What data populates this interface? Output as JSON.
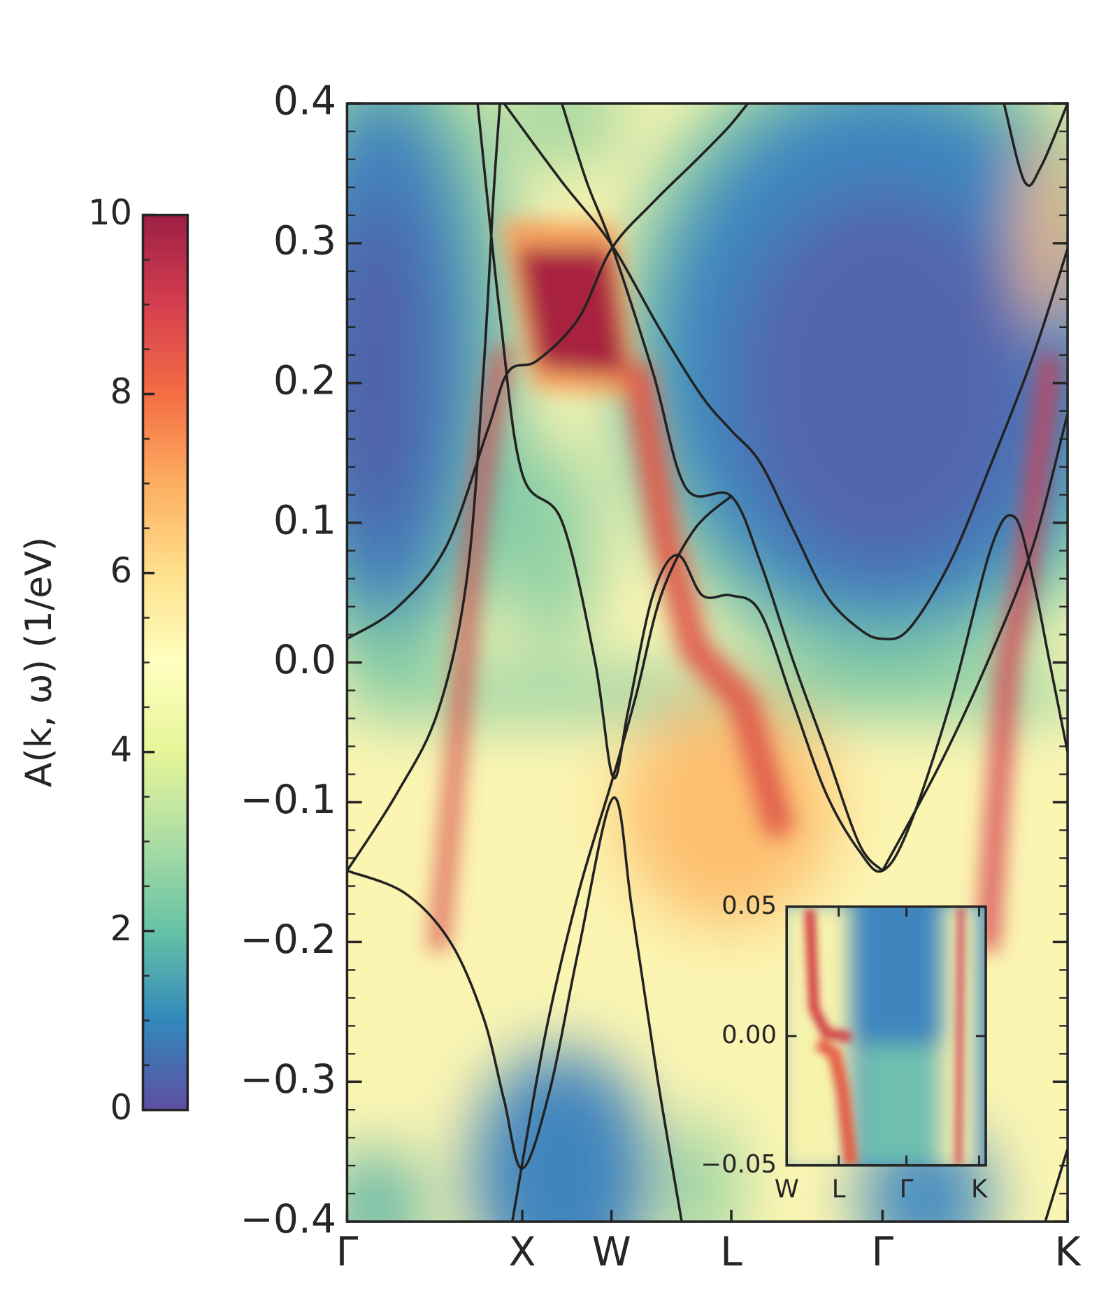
{
  "chart_data": {
    "type": "line",
    "line_color": "#222222",
    "xlim": [
      0,
      872
    ],
    "xticks": [
      {
        "value": 0,
        "label": "Γ"
      },
      {
        "value": 212,
        "label": "X"
      },
      {
        "value": 320,
        "label": "W"
      },
      {
        "value": 465,
        "label": "L"
      },
      {
        "value": 648,
        "label": "Γ"
      },
      {
        "value": 872,
        "label": "K"
      }
    ],
    "ylim": [
      -0.4,
      0.4
    ],
    "yticks": [
      {
        "value": -0.4,
        "label": "−0.4"
      },
      {
        "value": -0.3,
        "label": "−0.3"
      },
      {
        "value": -0.2,
        "label": "−0.2"
      },
      {
        "value": -0.1,
        "label": "−0.1"
      },
      {
        "value": 0,
        "label": "0.0"
      },
      0.1,
      0.2,
      0.3,
      0.4
    ],
    "yminorticks": [
      -0.38,
      -0.36,
      -0.34,
      -0.32,
      -0.28,
      -0.26,
      -0.24,
      -0.22,
      -0.18,
      -0.16,
      -0.14,
      -0.12,
      -0.08,
      -0.06,
      -0.04,
      -0.02,
      0.02,
      0.04,
      0.06,
      0.08,
      0.12,
      0.14,
      0.16,
      0.18,
      0.22,
      0.24,
      0.26,
      0.28,
      0.32,
      0.34,
      0.36,
      0.38
    ],
    "series": [
      {
        "x": [
          0,
          60,
          120,
          170,
          195,
          230,
          280,
          320,
          370,
          420,
          460,
          485
        ],
        "values": [
          0.017,
          0.039,
          0.083,
          0.166,
          0.208,
          0.216,
          0.246,
          0.296,
          0.329,
          0.358,
          0.382,
          0.4
        ]
      },
      {
        "x": [
          260,
          290,
          320,
          370,
          410,
          465,
          500,
          540,
          580,
          620,
          648
        ],
        "values": [
          0.4,
          0.344,
          0.299,
          0.208,
          0.125,
          0.119,
          0.072,
          0.001,
          -0.064,
          -0.13,
          -0.149
        ]
      },
      {
        "x": [
          190,
          260,
          320,
          380,
          430,
          465,
          500,
          540,
          580,
          620,
          648,
          680,
          730,
          780,
          830,
          872
        ],
        "values": [
          0.4,
          0.344,
          0.299,
          0.237,
          0.19,
          0.166,
          0.143,
          0.095,
          0.048,
          0.024,
          0.017,
          0.024,
          0.072,
          0.143,
          0.219,
          0.296
        ]
      },
      {
        "x": [
          0,
          60,
          110,
          145,
          165,
          177,
          185
        ],
        "values": [
          -0.149,
          -0.094,
          -0.035,
          0.06,
          0.208,
          0.332,
          0.4
        ]
      },
      {
        "x": [
          158,
          185,
          212,
          260,
          300,
          322,
          340,
          370,
          400,
          430,
          465,
          500,
          540,
          580,
          620,
          648,
          680,
          730,
          780,
          808,
          830,
          850,
          872
        ],
        "values": [
          0.4,
          0.249,
          0.135,
          0.101,
          0.001,
          -0.082,
          -0.035,
          0.048,
          0.077,
          0.048,
          0.048,
          0.036,
          -0.029,
          -0.094,
          -0.135,
          -0.149,
          -0.118,
          -0.029,
          0.083,
          0.104,
          0.06,
          0.001,
          -0.064
        ]
      },
      {
        "x": [
          0,
          70,
          125,
          165,
          190,
          212,
          245,
          280,
          322,
          345,
          375,
          405
        ],
        "values": [
          -0.149,
          -0.165,
          -0.2,
          -0.254,
          -0.313,
          -0.362,
          -0.307,
          -0.206,
          -0.097,
          -0.177,
          -0.295,
          -0.4
        ]
      },
      {
        "x": [
          200,
          240,
          280,
          322,
          350,
          380,
          420,
          465
        ],
        "values": [
          -0.4,
          -0.266,
          -0.165,
          -0.082,
          -0.023,
          0.048,
          0.095,
          0.119
        ]
      },
      {
        "x": [
          648,
          720,
          780,
          830,
          872
        ],
        "values": [
          -0.149,
          -0.07,
          0.007,
          0.083,
          0.178
        ]
      },
      {
        "x": [
          795,
          820,
          840,
          872
        ],
        "values": [
          0.4,
          0.344,
          0.355,
          0.4
        ]
      },
      {
        "x": [
          845,
          872
        ],
        "values": [
          -0.4,
          -0.348
        ]
      }
    ],
    "colorbar": {
      "label": "A(k, ω) (1/eV)",
      "lim": [
        0,
        10
      ],
      "ticks": [
        0,
        2,
        4,
        6,
        8,
        10
      ],
      "minorticks": [
        0.5,
        1,
        1.5,
        2.5,
        3,
        3.5,
        4.5,
        5,
        5.5,
        6.5,
        7,
        7.5,
        8.5,
        9,
        9.5
      ]
    },
    "inset": {
      "xlim": [
        0,
        241
      ],
      "xticks": [
        {
          "value": 0,
          "label": "W"
        },
        {
          "value": 63,
          "label": "L"
        },
        {
          "value": 145,
          "label": "Γ"
        },
        {
          "value": 233,
          "label": "K"
        }
      ],
      "ylim": [
        -0.05,
        0.05
      ],
      "yticks": [
        {
          "value": -0.05,
          "label": "−0.05"
        },
        {
          "value": 0,
          "label": "0.00"
        },
        0.05
      ]
    }
  }
}
